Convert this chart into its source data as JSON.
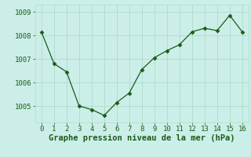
{
  "x": [
    0,
    1,
    2,
    3,
    4,
    5,
    6,
    7,
    8,
    9,
    10,
    11,
    12,
    13,
    14,
    15,
    16
  ],
  "y": [
    1008.15,
    1006.8,
    1006.45,
    1005.0,
    1004.85,
    1004.6,
    1005.15,
    1005.55,
    1006.55,
    1007.05,
    1007.35,
    1007.6,
    1008.15,
    1008.3,
    1008.2,
    1008.85,
    1008.15
  ],
  "line_color": "#1a5c1a",
  "marker": "D",
  "marker_size": 2.5,
  "bg_color": "#cceee8",
  "grid_color": "#aaddcc",
  "xlabel": "Graphe pression niveau de la mer (hPa)",
  "xlabel_color": "#1a5c1a",
  "xlabel_fontsize": 7.5,
  "tick_color": "#1a5c1a",
  "tick_fontsize": 6.5,
  "ylim": [
    1004.3,
    1009.3
  ],
  "xlim": [
    -0.5,
    16.5
  ],
  "yticks": [
    1005,
    1006,
    1007,
    1008,
    1009
  ],
  "xticks": [
    0,
    1,
    2,
    3,
    4,
    5,
    6,
    7,
    8,
    9,
    10,
    11,
    12,
    13,
    14,
    15,
    16
  ]
}
